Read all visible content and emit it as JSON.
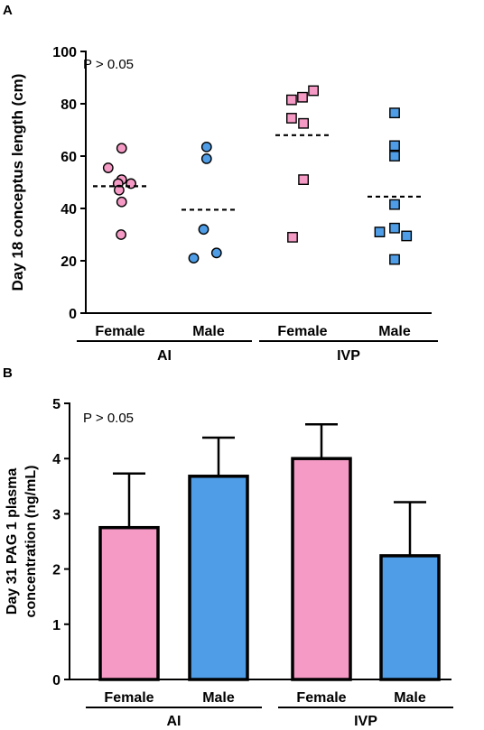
{
  "colors": {
    "female": "#f49ac4",
    "male": "#4e9de6",
    "ink": "#000000"
  },
  "chart_data": [
    {
      "panel": "A",
      "type": "scatter",
      "ylabel": "Day 18 conceptus length (cm)",
      "ylim": [
        0,
        100
      ],
      "yticks": [
        0,
        20,
        40,
        60,
        80,
        100
      ],
      "annotation": "P > 0.05",
      "categories": [
        "Female",
        "Male",
        "Female",
        "Male"
      ],
      "groups": [
        {
          "label": "AI",
          "span": [
            0,
            1
          ]
        },
        {
          "label": "IVP",
          "span": [
            2,
            3
          ]
        }
      ],
      "series": [
        {
          "category": 0,
          "marker": "circle",
          "color": "female",
          "points": [
            {
              "dx": 0.08,
              "y": 63
            },
            {
              "dx": -0.6,
              "y": 55.5
            },
            {
              "dx": 0.08,
              "y": 51
            },
            {
              "dx": 0.55,
              "y": 49.5
            },
            {
              "dx": -0.1,
              "y": 49.5
            },
            {
              "dx": -0.05,
              "y": 47
            },
            {
              "dx": 0.08,
              "y": 42.5
            },
            {
              "dx": 0.05,
              "y": 30
            }
          ],
          "mean": 48.5
        },
        {
          "category": 1,
          "marker": "circle",
          "color": "male",
          "points": [
            {
              "dx": -0.1,
              "y": 63.5
            },
            {
              "dx": -0.1,
              "y": 59
            },
            {
              "dx": -0.25,
              "y": 32
            },
            {
              "dx": 0.4,
              "y": 23
            },
            {
              "dx": -0.75,
              "y": 21
            }
          ],
          "mean": 39.5
        },
        {
          "category": 2,
          "marker": "square",
          "color": "female",
          "points": [
            {
              "dx": 0.55,
              "y": 85
            },
            {
              "dx": -0.55,
              "y": 81.5
            },
            {
              "dx": 0.0,
              "y": 82.5
            },
            {
              "dx": -0.55,
              "y": 74.5
            },
            {
              "dx": 0.05,
              "y": 72.5
            },
            {
              "dx": 0.05,
              "y": 51
            },
            {
              "dx": -0.5,
              "y": 29
            }
          ],
          "mean": 68
        },
        {
          "category": 3,
          "marker": "square",
          "color": "male",
          "points": [
            {
              "dx": 0.0,
              "y": 76.5
            },
            {
              "dx": 0.0,
              "y": 64
            },
            {
              "dx": 0.0,
              "y": 60
            },
            {
              "dx": 0.0,
              "y": 41.5
            },
            {
              "dx": 0.0,
              "y": 32.5
            },
            {
              "dx": -0.75,
              "y": 31
            },
            {
              "dx": 0.6,
              "y": 29.5
            },
            {
              "dx": 0.0,
              "y": 20.5
            }
          ],
          "mean": 44.5
        }
      ]
    },
    {
      "panel": "B",
      "type": "bar",
      "ylabel": [
        "Day 31 PAG 1 plasma",
        "concentration (ng/mL)"
      ],
      "ylim": [
        0,
        5
      ],
      "yticks": [
        0,
        1,
        2,
        3,
        4,
        5
      ],
      "annotation": "P > 0.05",
      "categories": [
        "Female",
        "Male",
        "Female",
        "Male"
      ],
      "groups": [
        {
          "label": "AI",
          "span": [
            0,
            1
          ]
        },
        {
          "label": "IVP",
          "span": [
            2,
            3
          ]
        }
      ],
      "values": [
        2.75,
        3.68,
        4.0,
        2.24
      ],
      "errors": [
        0.98,
        0.7,
        0.62,
        0.97
      ],
      "bar_colors": [
        "female",
        "male",
        "female",
        "male"
      ]
    }
  ]
}
